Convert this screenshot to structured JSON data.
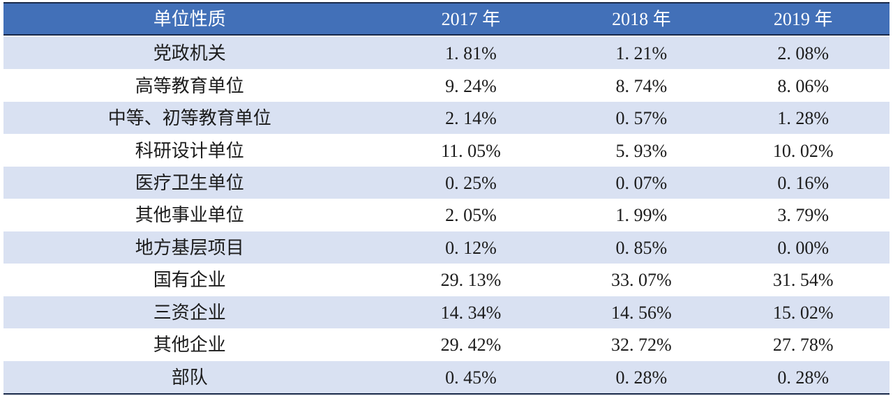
{
  "colors": {
    "header_bg": "#4270B8",
    "band_row_bg": "#D9E1F2",
    "rule_line": "#1A2A4A",
    "header_text": "#FFFFFF",
    "body_text": "#1C1C1C"
  },
  "chart_data": {
    "type": "table",
    "title": "",
    "columns": [
      "单位性质",
      "2017 年",
      "2018 年",
      "2019 年"
    ],
    "rows": [
      {
        "label": "党政机关",
        "values": [
          "1. 81%",
          "1. 21%",
          "2. 08%"
        ]
      },
      {
        "label": "高等教育单位",
        "values": [
          "9. 24%",
          "8. 74%",
          "8. 06%"
        ]
      },
      {
        "label": "中等、初等教育单位",
        "values": [
          "2. 14%",
          "0. 57%",
          "1. 28%"
        ]
      },
      {
        "label": "科研设计单位",
        "values": [
          "11. 05%",
          "5. 93%",
          "10. 02%"
        ]
      },
      {
        "label": "医疗卫生单位",
        "values": [
          "0. 25%",
          "0. 07%",
          "0. 16%"
        ]
      },
      {
        "label": "其他事业单位",
        "values": [
          "2. 05%",
          "1. 99%",
          "3. 79%"
        ]
      },
      {
        "label": "地方基层项目",
        "values": [
          "0. 12%",
          "0. 85%",
          "0. 00%"
        ]
      },
      {
        "label": "国有企业",
        "values": [
          "29. 13%",
          "33. 07%",
          "31. 54%"
        ]
      },
      {
        "label": "三资企业",
        "values": [
          "14. 34%",
          "14. 56%",
          "15. 02%"
        ]
      },
      {
        "label": "其他企业",
        "values": [
          "29. 42%",
          "32. 72%",
          "27. 78%"
        ]
      },
      {
        "label": "部队",
        "values": [
          "0. 45%",
          "0. 28%",
          "0. 28%"
        ]
      }
    ],
    "series": [
      {
        "name": "2017 年",
        "values": [
          1.81,
          9.24,
          2.14,
          11.05,
          0.25,
          2.05,
          0.12,
          29.13,
          14.34,
          29.42,
          0.45
        ]
      },
      {
        "name": "2018 年",
        "values": [
          1.21,
          8.74,
          0.57,
          5.93,
          0.07,
          1.99,
          0.85,
          33.07,
          14.56,
          32.72,
          0.28
        ]
      },
      {
        "name": "2019 年",
        "values": [
          2.08,
          8.06,
          1.28,
          10.02,
          0.16,
          3.79,
          0.0,
          31.54,
          15.02,
          27.78,
          0.28
        ]
      }
    ],
    "unit": "%"
  }
}
